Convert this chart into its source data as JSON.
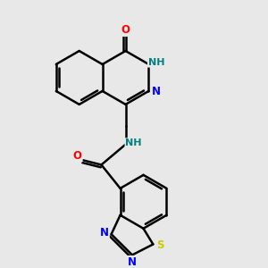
{
  "bg_color": "#e8e8e8",
  "bond_color": "#000000",
  "bond_width": 1.8,
  "atom_colors": {
    "O": "#ff0000",
    "N": "#0000ff",
    "S": "#cccc00",
    "H": "#008080",
    "C": "#000000"
  },
  "font_size": 8.5,
  "fig_size": [
    3.0,
    3.0
  ],
  "xlim": [
    0,
    10
  ],
  "ylim": [
    0,
    10
  ]
}
